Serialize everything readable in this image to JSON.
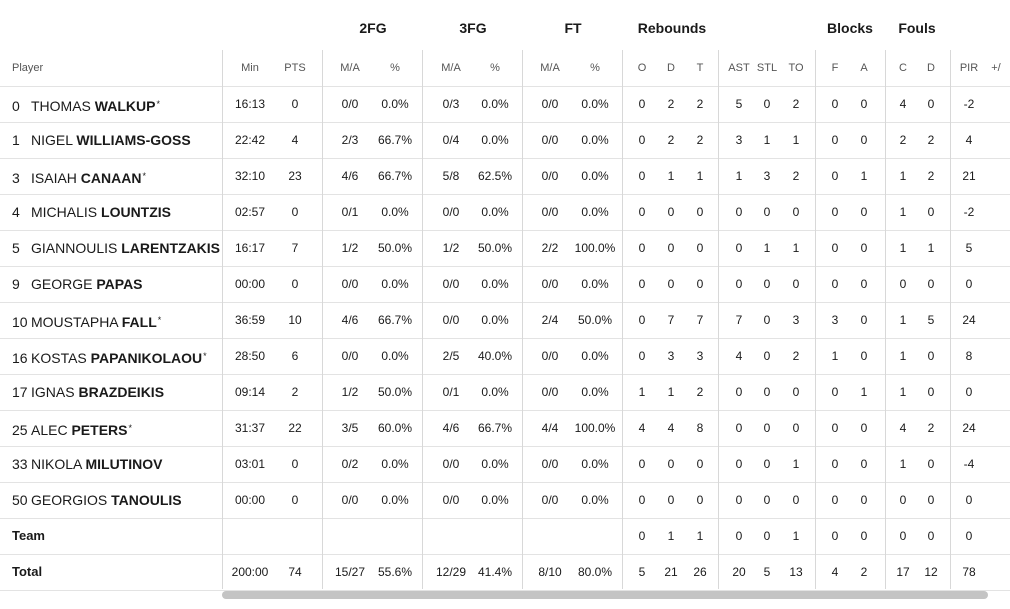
{
  "group_headers": [
    {
      "label": "2FG",
      "cx": 0
    },
    {
      "label": "3FG",
      "cx": 0
    },
    {
      "label": "FT",
      "cx": 0
    },
    {
      "label": "Rebounds",
      "cx": 0
    },
    {
      "label": "Blocks",
      "cx": 0
    },
    {
      "label": "Fouls",
      "cx": 0
    }
  ],
  "column_headers": [
    "Player",
    "Min",
    "PTS",
    "M/A",
    "%",
    "M/A",
    "%",
    "M/A",
    "%",
    "O",
    "D",
    "T",
    "AST",
    "STL",
    "TO",
    "F",
    "A",
    "C",
    "D",
    "PIR",
    "+/"
  ],
  "players": [
    {
      "number": "0",
      "first": "Thomas",
      "last": "Walkup",
      "starter": true,
      "stats": [
        "16:13",
        "0",
        "0/0",
        "0.0%",
        "0/3",
        "0.0%",
        "0/0",
        "0.0%",
        "0",
        "2",
        "2",
        "5",
        "0",
        "2",
        "0",
        "0",
        "4",
        "0",
        "-2",
        ""
      ]
    },
    {
      "number": "1",
      "first": "Nigel",
      "last": "Williams-Goss",
      "starter": false,
      "stats": [
        "22:42",
        "4",
        "2/3",
        "66.7%",
        "0/4",
        "0.0%",
        "0/0",
        "0.0%",
        "0",
        "2",
        "2",
        "3",
        "1",
        "1",
        "0",
        "0",
        "2",
        "2",
        "4",
        ""
      ]
    },
    {
      "number": "3",
      "first": "Isaiah",
      "last": "Canaan",
      "starter": true,
      "stats": [
        "32:10",
        "23",
        "4/6",
        "66.7%",
        "5/8",
        "62.5%",
        "0/0",
        "0.0%",
        "0",
        "1",
        "1",
        "1",
        "3",
        "2",
        "0",
        "1",
        "1",
        "2",
        "21",
        ""
      ]
    },
    {
      "number": "4",
      "first": "Michalis",
      "last": "Lountzis",
      "starter": false,
      "stats": [
        "02:57",
        "0",
        "0/1",
        "0.0%",
        "0/0",
        "0.0%",
        "0/0",
        "0.0%",
        "0",
        "0",
        "0",
        "0",
        "0",
        "0",
        "0",
        "0",
        "1",
        "0",
        "-2",
        ""
      ]
    },
    {
      "number": "5",
      "first": "Giannoulis",
      "last": "Larentzakis",
      "starter": false,
      "stats": [
        "16:17",
        "7",
        "1/2",
        "50.0%",
        "1/2",
        "50.0%",
        "2/2",
        "100.0%",
        "0",
        "0",
        "0",
        "0",
        "1",
        "1",
        "0",
        "0",
        "1",
        "1",
        "5",
        ""
      ]
    },
    {
      "number": "9",
      "first": "George",
      "last": "Papas",
      "starter": false,
      "stats": [
        "00:00",
        "0",
        "0/0",
        "0.0%",
        "0/0",
        "0.0%",
        "0/0",
        "0.0%",
        "0",
        "0",
        "0",
        "0",
        "0",
        "0",
        "0",
        "0",
        "0",
        "0",
        "0",
        ""
      ]
    },
    {
      "number": "10",
      "first": "Moustapha",
      "last": "Fall",
      "starter": true,
      "stats": [
        "36:59",
        "10",
        "4/6",
        "66.7%",
        "0/0",
        "0.0%",
        "2/4",
        "50.0%",
        "0",
        "7",
        "7",
        "7",
        "0",
        "3",
        "3",
        "0",
        "1",
        "5",
        "24",
        ""
      ]
    },
    {
      "number": "16",
      "first": "Kostas",
      "last": "Papanikolaou",
      "starter": true,
      "stats": [
        "28:50",
        "6",
        "0/0",
        "0.0%",
        "2/5",
        "40.0%",
        "0/0",
        "0.0%",
        "0",
        "3",
        "3",
        "4",
        "0",
        "2",
        "1",
        "0",
        "1",
        "0",
        "8",
        ""
      ]
    },
    {
      "number": "17",
      "first": "Ignas",
      "last": "Brazdeikis",
      "starter": false,
      "stats": [
        "09:14",
        "2",
        "1/2",
        "50.0%",
        "0/1",
        "0.0%",
        "0/0",
        "0.0%",
        "1",
        "1",
        "2",
        "0",
        "0",
        "0",
        "0",
        "1",
        "1",
        "0",
        "0",
        ""
      ]
    },
    {
      "number": "25",
      "first": "Alec",
      "last": "Peters",
      "starter": true,
      "stats": [
        "31:37",
        "22",
        "3/5",
        "60.0%",
        "4/6",
        "66.7%",
        "4/4",
        "100.0%",
        "4",
        "4",
        "8",
        "0",
        "0",
        "0",
        "0",
        "0",
        "4",
        "2",
        "24",
        ""
      ]
    },
    {
      "number": "33",
      "first": "Nikola",
      "last": "Milutinov",
      "starter": false,
      "stats": [
        "03:01",
        "0",
        "0/2",
        "0.0%",
        "0/0",
        "0.0%",
        "0/0",
        "0.0%",
        "0",
        "0",
        "0",
        "0",
        "0",
        "1",
        "0",
        "0",
        "1",
        "0",
        "-4",
        ""
      ]
    },
    {
      "number": "50",
      "first": "Georgios",
      "last": "Tanoulis",
      "starter": false,
      "stats": [
        "00:00",
        "0",
        "0/0",
        "0.0%",
        "0/0",
        "0.0%",
        "0/0",
        "0.0%",
        "0",
        "0",
        "0",
        "0",
        "0",
        "0",
        "0",
        "0",
        "0",
        "0",
        "0",
        ""
      ]
    }
  ],
  "team_row": {
    "label": "Team",
    "stats": [
      "",
      "",
      "",
      "",
      "",
      "",
      "",
      "",
      "0",
      "1",
      "1",
      "0",
      "0",
      "1",
      "0",
      "0",
      "0",
      "0",
      "0",
      ""
    ]
  },
  "total_row": {
    "label": "Total",
    "stats": [
      "200:00",
      "74",
      "15/27",
      "55.6%",
      "12/29",
      "41.4%",
      "8/10",
      "80.0%",
      "5",
      "21",
      "26",
      "20",
      "5",
      "13",
      "4",
      "2",
      "17",
      "12",
      "78",
      ""
    ]
  }
}
